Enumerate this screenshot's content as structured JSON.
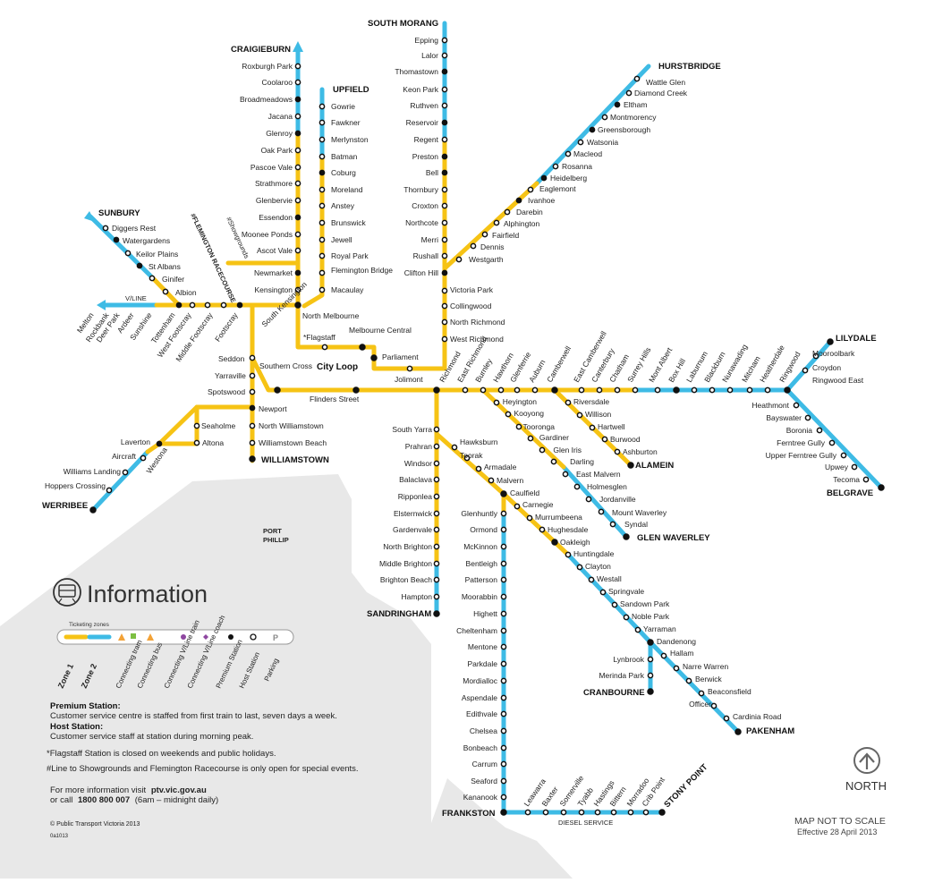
{
  "colors": {
    "zone1": "#f6c315",
    "zone2": "#3ebbe5",
    "land": "#e8e8e8",
    "train": "#f3a237",
    "bus": "#7cbf42",
    "vline": "#8e47a0",
    "station_dark": "#111111"
  },
  "map": {
    "terminals": {
      "south_morang": "SOUTH MORANG",
      "craigieburn": "CRAIGIEBURN",
      "upfield": "UPFIELD",
      "hurstbridge": "HURSTBRIDGE",
      "sunbury": "SUNBURY",
      "lilydale": "LILYDALE",
      "williamstown": "WILLIAMSTOWN",
      "werribee": "WERRIBEE",
      "belgrave": "BELGRAVE",
      "alamein": "ALAMEIN",
      "glen_waverley": "GLEN WAVERLEY",
      "sandringham": "SANDRINGHAM",
      "cranbourne": "CRANBOURNE",
      "pakenham": "PAKENHAM",
      "frankston": "FRANKSTON",
      "stony_point": "STONY POINT"
    },
    "south_morang_line": [
      "Epping",
      "Lalor",
      "Thomastown",
      "Keon Park",
      "Ruthven",
      "Reservoir",
      "Regent",
      "Preston",
      "Bell",
      "Thornbury",
      "Croxton",
      "Northcote",
      "Merri",
      "Rushall",
      "Clifton Hill"
    ],
    "craigieburn_line": [
      "Roxburgh Park",
      "Coolaroo",
      "Broadmeadows",
      "Jacana",
      "Glenroy",
      "Oak Park",
      "Pascoe Vale",
      "Strathmore",
      "Glenbervie",
      "Essendon",
      "Moonee Ponds",
      "Ascot Vale",
      "Newmarket",
      "Kensington"
    ],
    "upfield_line": [
      "Gowrie",
      "Fawkner",
      "Merlynston",
      "Batman",
      "Coburg",
      "Moreland",
      "Anstey",
      "Brunswick",
      "Jewell",
      "Royal Park",
      "Flemington Bridge",
      "Macaulay"
    ],
    "hurstbridge_line": [
      "Wattle Glen",
      "Diamond Creek",
      "Eltham",
      "Montmorency",
      "Greensborough",
      "Watsonia",
      "Macleod",
      "Rosanna",
      "Heidelberg",
      "Eaglemont",
      "Ivanhoe",
      "Darebin",
      "Alphington",
      "Fairfield",
      "Dennis",
      "Westgarth"
    ],
    "inner_north": [
      "Victoria Park",
      "Collingwood",
      "North Richmond",
      "West Richmond"
    ],
    "sunbury_line": [
      "Diggers Rest",
      "Watergardens",
      "Keilor Plains",
      "St Albans",
      "Ginifer",
      "Albion"
    ],
    "west_rotated": [
      "Melton",
      "Rockbank",
      "Deer Park",
      "Ardeer",
      "Sunshine",
      "Tottenham",
      "West Footscray",
      "Middle Footscray",
      "Footscray"
    ],
    "vline_label": "V/LINE",
    "showgrounds_label": "#Showgrounds",
    "racecourse_label": "#FLEMINGTON RACECOURSE",
    "city": {
      "north_melbourne": "North Melbourne",
      "south_kensington": "South Kensington",
      "flagstaff": "*Flagstaff",
      "melbourne_central": "Melbourne Central",
      "city_loop": "City Loop",
      "parliament": "Parliament",
      "jolimont": "Jolimont",
      "southern_cross": "Southern Cross",
      "flinders_street": "Flinders Street",
      "seddon": "Seddon",
      "yarraville": "Yarraville",
      "spotswood": "Spotswood",
      "newport": "Newport"
    },
    "williamstown_line": [
      "North Williamstown",
      "Williamstown Beach"
    ],
    "werribee_line": [
      "Seaholme",
      "Altona",
      "Laverton",
      "Aircraft",
      "Westona",
      "Williams Landing",
      "Hoppers Crossing"
    ],
    "east_rotated": [
      "Richmond",
      "East Richmond",
      "Burnley",
      "Hawthorn",
      "Glenferrie",
      "Auburn",
      "Camberwell",
      "East Camberwell",
      "Canterbury",
      "Chatham",
      "Surrey Hills",
      "Mont Albert",
      "Box Hill",
      "Laburnum",
      "Blackburn",
      "Nunawading",
      "Mitcham",
      "Heatherdale",
      "Ringwood"
    ],
    "lilydale_line": [
      "Mooroolbark",
      "Croydon",
      "Ringwood East"
    ],
    "belgrave_line": [
      "Heathmont",
      "Bayswater",
      "Boronia",
      "Ferntree Gully",
      "Upper Ferntree Gully",
      "Upwey",
      "Tecoma"
    ],
    "alamein_line": [
      "Riversdale",
      "Willison",
      "Hartwell",
      "Burwood",
      "Ashburton"
    ],
    "glen_waverley_line": [
      "Heyington",
      "Kooyong",
      "Tooronga",
      "Gardiner",
      "Glen Iris",
      "Darling",
      "East Malvern",
      "Holmesglen",
      "Jordanville",
      "Mount Waverley",
      "Syndal"
    ],
    "sandringham_line": [
      "South Yarra",
      "Prahran",
      "Windsor",
      "Balaclava",
      "Ripponlea",
      "Elsternwick",
      "Gardenvale",
      "North Brighton",
      "Middle Brighton",
      "Brighton Beach",
      "Hampton"
    ],
    "caulfield_group": [
      "Hawksburn",
      "Toorak",
      "Armadale",
      "Malvern",
      "Caulfield",
      "Carnegie",
      "Murrumbeena",
      "Hughesdale",
      "Oakleigh",
      "Huntingdale",
      "Clayton",
      "Westall",
      "Springvale",
      "Sandown Park",
      "Noble Park",
      "Yarraman",
      "Dandenong"
    ],
    "cranbourne_line": [
      "Lynbrook",
      "Merinda Park"
    ],
    "pakenham_line": [
      "Hallam",
      "Narre Warren",
      "Berwick",
      "Beaconsfield",
      "Officer",
      "Cardinia Road"
    ],
    "frankston_line": [
      "Glenhuntly",
      "Ormond",
      "McKinnon",
      "Bentleigh",
      "Patterson",
      "Moorabbin",
      "Highett",
      "Cheltenham",
      "Mentone",
      "Parkdale",
      "Mordialloc",
      "Aspendale",
      "Edithvale",
      "Chelsea",
      "Bonbeach",
      "Carrum",
      "Seaford",
      "Kananook"
    ],
    "stony_point_line": [
      "Leawarra",
      "Baxter",
      "Somerville",
      "Tyabb",
      "Hastings",
      "Bittern",
      "Morradoo",
      "Crib Point"
    ],
    "diesel_service": "DIESEL SERVICE",
    "port_phillip": [
      "PORT",
      "PHILLIP"
    ]
  },
  "info": {
    "title": "Information",
    "ticketing_zones": "Ticketing zones",
    "legend": [
      "Zone 1",
      "Zone 2",
      "Connecting tram",
      "Connecting bus",
      "Connecting V/Line train",
      "Connecting V/Line coach",
      "Premium Station",
      "Host Station",
      "Parking"
    ],
    "parking_letter": "P",
    "premium_title": "Premium Station:",
    "premium_text": "Customer service centre is staffed from first train to last, seven days a week.",
    "host_title": "Host Station:",
    "host_text": "Customer service staff at station during morning peak.",
    "flagstaff_note": "*Flagstaff Station is closed on weekends and public holidays.",
    "showgrounds_note": "#Line to Showgrounds and Flemington Racecourse is only open for special events.",
    "more_info_prefix": "For more information visit",
    "website": "ptv.vic.gov.au",
    "call_prefix": "or call",
    "phone": "1800 800 007",
    "hours": "(6am – midnight daily)",
    "copyright": "© Public Transport Victoria 2013",
    "code": "0a1013"
  },
  "north_label": "NORTH",
  "scale_note": "MAP NOT TO SCALE",
  "effective": "Effective 28 April 2013"
}
